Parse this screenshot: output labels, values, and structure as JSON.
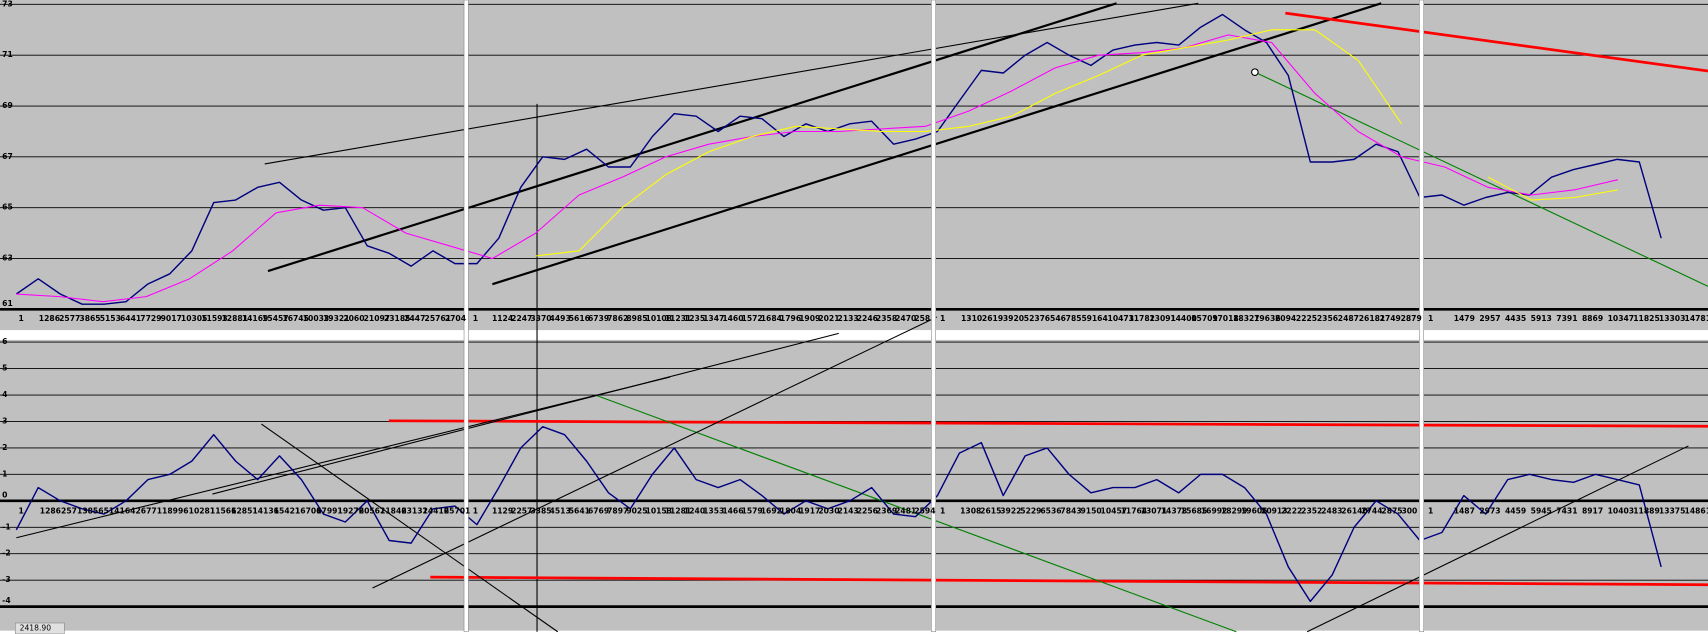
{
  "chart_data": [
    {
      "type": "line",
      "ylim": [
        61,
        73
      ],
      "yticks": [
        61,
        63,
        65,
        67,
        69,
        71,
        73
      ],
      "grid": true,
      "sections": [
        {
          "labels": [
            "1",
            "1286",
            "2577",
            "3865",
            "5153",
            "6441",
            "7729",
            "9017",
            "10305",
            "11593",
            "12881",
            "14169",
            "15457",
            "16745",
            "10033",
            "19321",
            "2060",
            "21097",
            "23185",
            "2447",
            "25761",
            "2704"
          ]
        },
        {
          "labels": [
            "1",
            "1124",
            "2247",
            "3370",
            "4493",
            "5616",
            "6739",
            "7862",
            "8985",
            "10108",
            "11231",
            "1235",
            "1347",
            "1460",
            "1572",
            "1684",
            "1796",
            "1909",
            "2021",
            "2133",
            "2246",
            "2358",
            "2470",
            "258"
          ]
        },
        {
          "labels": [
            "1",
            "1310",
            "2619",
            "3920",
            "5237",
            "6546",
            "7855",
            "9164",
            "10473",
            "11782",
            "13091",
            "14400",
            "15709",
            "17018",
            "18327",
            "19636",
            "2094",
            "2225",
            "2356",
            "2487",
            "26181",
            "2749",
            "2879"
          ]
        },
        {
          "labels": [
            "1",
            "1479",
            "2957",
            "4435",
            "5913",
            "7391",
            "8869",
            "10347",
            "11825",
            "13303",
            "14781"
          ]
        }
      ],
      "series": [
        {
          "color": "#000080",
          "values": [
            61.6,
            62.2,
            61.6,
            61.2,
            61.2,
            61.3,
            62.0,
            62.4,
            63.3,
            65.2,
            65.3,
            65.8,
            66.0,
            65.3,
            64.9,
            65.0,
            63.5,
            63.2,
            62.7,
            63.3,
            62.8,
            62.8,
            63.8,
            65.8,
            67.0,
            66.9,
            67.3,
            66.6,
            66.6,
            67.8,
            68.7,
            68.6,
            68.0,
            68.6,
            68.5,
            67.8,
            68.3,
            68.0,
            68.3,
            68.4,
            67.5,
            67.7,
            68.0,
            69.2,
            70.4,
            70.3,
            71.0,
            71.5,
            71.0,
            70.6,
            71.2,
            71.4,
            71.5,
            71.4,
            72.1,
            72.6,
            72.0,
            71.5,
            70.2,
            66.8,
            66.8,
            66.9,
            67.5,
            67.2,
            65.4,
            65.5,
            65.1,
            65.4,
            65.6,
            65.5,
            66.2,
            66.5,
            66.7,
            66.9,
            66.8,
            63.8
          ]
        },
        {
          "color": "#ff00ff",
          "values": [
            61.6,
            61.5,
            61.3,
            61.5,
            62.2,
            63.3,
            64.8,
            65.1,
            65.0,
            64.0,
            63.5,
            63.0,
            64.0,
            65.5,
            66.2,
            67.0,
            67.5,
            67.8,
            68.0,
            68.0,
            68.1,
            68.2,
            68.8,
            69.6,
            70.5,
            71.0,
            71.1,
            71.3,
            71.8,
            71.5,
            69.5,
            68.0,
            67.0,
            66.6,
            65.8,
            65.5,
            65.7,
            66.1,
            null
          ]
        },
        {
          "color": "#ffff00",
          "values": [
            null,
            null,
            null,
            null,
            null,
            null,
            null,
            null,
            null,
            null,
            null,
            null,
            63.1,
            63.3,
            65.0,
            66.3,
            67.2,
            67.8,
            68.2,
            68.1,
            68.0,
            68.0,
            68.2,
            68.6,
            69.5,
            70.2,
            71.0,
            71.3,
            71.6,
            72.0,
            72.0,
            70.8,
            68.3,
            null,
            66.2,
            65.3,
            65.4,
            65.7,
            null
          ]
        }
      ]
    },
    {
      "type": "line",
      "ylim": [
        -4,
        6
      ],
      "yticks": [
        -4,
        -3,
        -2,
        -1,
        0,
        1,
        2,
        3,
        4,
        5,
        6
      ],
      "grid": true,
      "sections": [
        {
          "labels": [
            "1",
            "1286",
            "2571",
            "3856",
            "5141",
            "6426",
            "7711",
            "8996",
            "10281",
            "11566",
            "12851",
            "14136",
            "15421",
            "16706",
            "17991",
            "19276",
            "20561",
            "21846",
            "23131",
            "24416",
            "25701"
          ]
        },
        {
          "labels": [
            "1",
            "1129",
            "2257",
            "3385",
            "4513",
            "5641",
            "6769",
            "7897",
            "9025",
            "10153",
            "11281",
            "1240",
            "1353",
            "1466",
            "1579",
            "1692",
            "1804",
            "1917",
            "2030",
            "2143",
            "2256",
            "2369",
            "2481",
            "2594"
          ]
        },
        {
          "labels": [
            "1",
            "1308",
            "2615",
            "3922",
            "5229",
            "6536",
            "7843",
            "9150",
            "10457",
            "11764",
            "13071",
            "14378",
            "15685",
            "16992",
            "18299",
            "19606",
            "20913",
            "2222",
            "2352",
            "2483",
            "26140",
            "2744",
            "2875",
            "300"
          ]
        },
        {
          "labels": [
            "1",
            "1487",
            "2973",
            "4459",
            "5945",
            "7431",
            "8917",
            "10403",
            "11889",
            "13375",
            "14861"
          ]
        }
      ],
      "series": [
        {
          "color": "#000080",
          "values": [
            -1.1,
            0.5,
            0.0,
            -0.3,
            -0.5,
            0.0,
            0.8,
            1.0,
            1.5,
            2.5,
            1.5,
            0.8,
            1.7,
            0.8,
            -0.5,
            -0.8,
            0.0,
            -1.5,
            -1.6,
            -0.3,
            -0.2,
            -0.9,
            0.5,
            2.0,
            2.8,
            2.5,
            1.5,
            0.3,
            -0.3,
            1.0,
            2.0,
            0.8,
            0.5,
            0.8,
            0.2,
            -0.5,
            0.0,
            -0.3,
            0.0,
            0.5,
            -0.5,
            -0.6,
            0.2,
            1.8,
            2.2,
            0.2,
            1.7,
            2.0,
            1.0,
            0.3,
            0.5,
            0.5,
            0.8,
            0.3,
            1.0,
            1.0,
            0.5,
            -0.5,
            -2.5,
            -3.8,
            -2.8,
            -1.0,
            0.0,
            -0.5,
            -1.5,
            -1.2,
            0.2,
            -0.5,
            0.8,
            1.0,
            0.8,
            0.7,
            1.0,
            0.8,
            0.6,
            -2.5
          ]
        }
      ]
    }
  ],
  "status": "2418.90"
}
